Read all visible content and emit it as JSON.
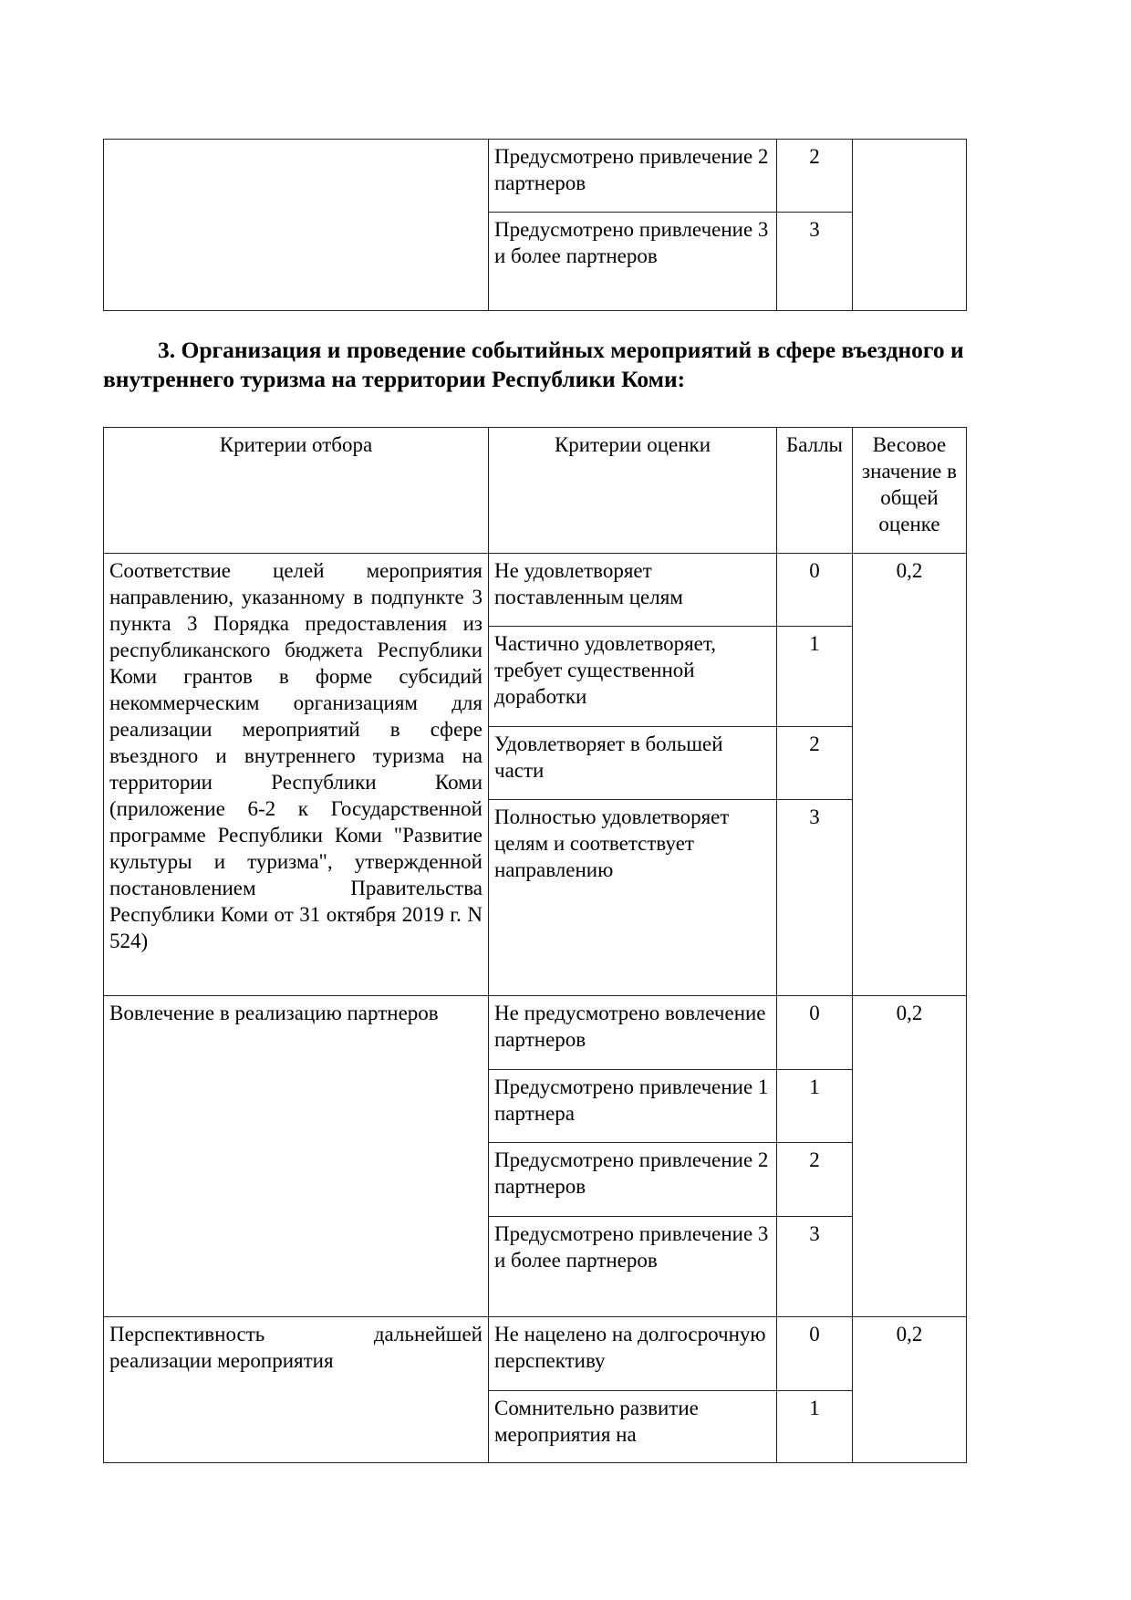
{
  "top_table": {
    "rows": [
      {
        "criterion": "Предусмотрено привлечение 2 партнеров",
        "score": "2"
      },
      {
        "criterion": "Предусмотрено привлечение 3 и более партнеров",
        "score": "3"
      }
    ]
  },
  "section_heading": "3. Организация и проведение событийных мероприятий в сфере въездного и внутреннего туризма на территории Республики Коми:",
  "main_table": {
    "headers": [
      "Критерии отбора",
      "Критерии оценки",
      "Баллы",
      "Весовое значение в общей оценке"
    ],
    "groups": [
      {
        "selection": "Соответствие целей мероприятия направлению, указанному в подпункте 3 пункта 3 Порядка предоставления из республиканского бюджета Республики Коми грантов в форме субсидий некоммерческим организациям для реализации мероприятий в сфере въездного и внутреннего туризма на территории Республики Коми (приложение 6-2 к Государственной программе Республики Коми \"Развитие культуры и туризма\", утвержденной постановлением Правительства Республики Коми от 31 октября 2019 г. N 524)",
        "weight": "0,2",
        "rows": [
          {
            "criterion": "Не удовлетворяет поставленным целям",
            "score": "0"
          },
          {
            "criterion": "Частично удовлетворяет, требует существенной доработки",
            "score": "1"
          },
          {
            "criterion": "Удовлетворяет в большей части",
            "score": "2"
          },
          {
            "criterion": "Полностью удовлетворяет целям и соответствует направлению",
            "score": "3"
          }
        ]
      },
      {
        "selection": "Вовлечение в реализацию партнеров",
        "weight": "0,2",
        "rows": [
          {
            "criterion": "Не предусмотрено вовлечение партнеров",
            "score": "0"
          },
          {
            "criterion": "Предусмотрено привлечение 1 партнера",
            "score": "1"
          },
          {
            "criterion": "Предусмотрено привлечение 2 партнеров",
            "score": "2"
          },
          {
            "criterion": "Предусмотрено привлечение 3 и более партнеров",
            "score": "3"
          }
        ]
      },
      {
        "selection": "Перспективность дальнейшей реализации мероприятия",
        "weight": "0,2",
        "rows": [
          {
            "criterion": "Не нацелено на долгосрочную перспективу",
            "score": "0"
          },
          {
            "criterion": "Сомнительно развитие мероприятия на",
            "score": "1"
          }
        ]
      }
    ]
  }
}
